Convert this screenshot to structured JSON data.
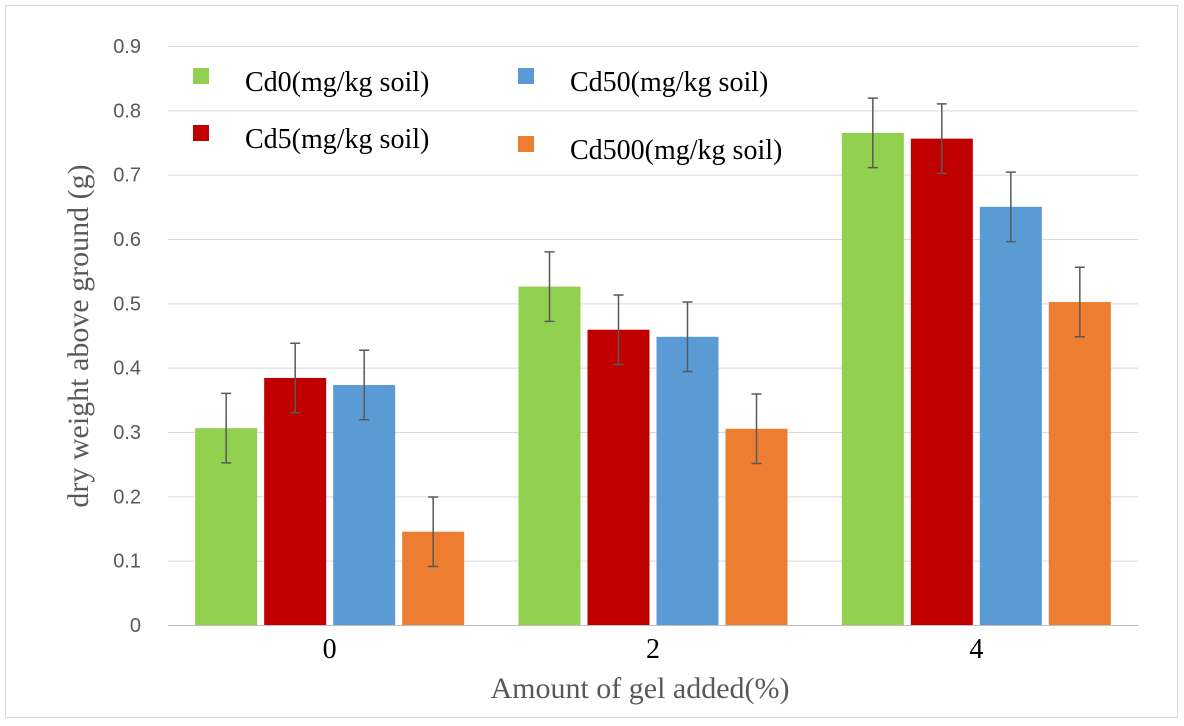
{
  "chart_data": {
    "type": "bar",
    "title": "",
    "xlabel": "Amount of gel added(%)",
    "ylabel": "dry weight above ground (g)",
    "ylim": [
      0,
      0.9
    ],
    "yticks": [
      "0",
      "0.1",
      "0.2",
      "0.3",
      "0.4",
      "0.5",
      "0.6",
      "0.7",
      "0.8",
      "0.9"
    ],
    "grid": true,
    "legend_placement": "top-left",
    "categories": [
      "0",
      "2",
      "4"
    ],
    "series": [
      {
        "name": "Cd0(mg/kg soil)",
        "color": "#92D050",
        "values": [
          0.306,
          0.526,
          0.765
        ],
        "errors": [
          0.054,
          0.054,
          0.054
        ]
      },
      {
        "name": "Cd5(mg/kg soil)",
        "color": "#C00000",
        "values": [
          0.384,
          0.459,
          0.756
        ],
        "errors": [
          0.054,
          0.054,
          0.054
        ]
      },
      {
        "name": "Cd50(mg/kg soil)",
        "color": "#5B9BD5",
        "values": [
          0.373,
          0.448,
          0.65
        ],
        "errors": [
          0.054,
          0.054,
          0.054
        ]
      },
      {
        "name": "Cd500(mg/kg soil)",
        "color": "#ED7D31",
        "values": [
          0.145,
          0.305,
          0.502
        ],
        "errors": [
          0.054,
          0.054,
          0.054
        ]
      }
    ]
  }
}
